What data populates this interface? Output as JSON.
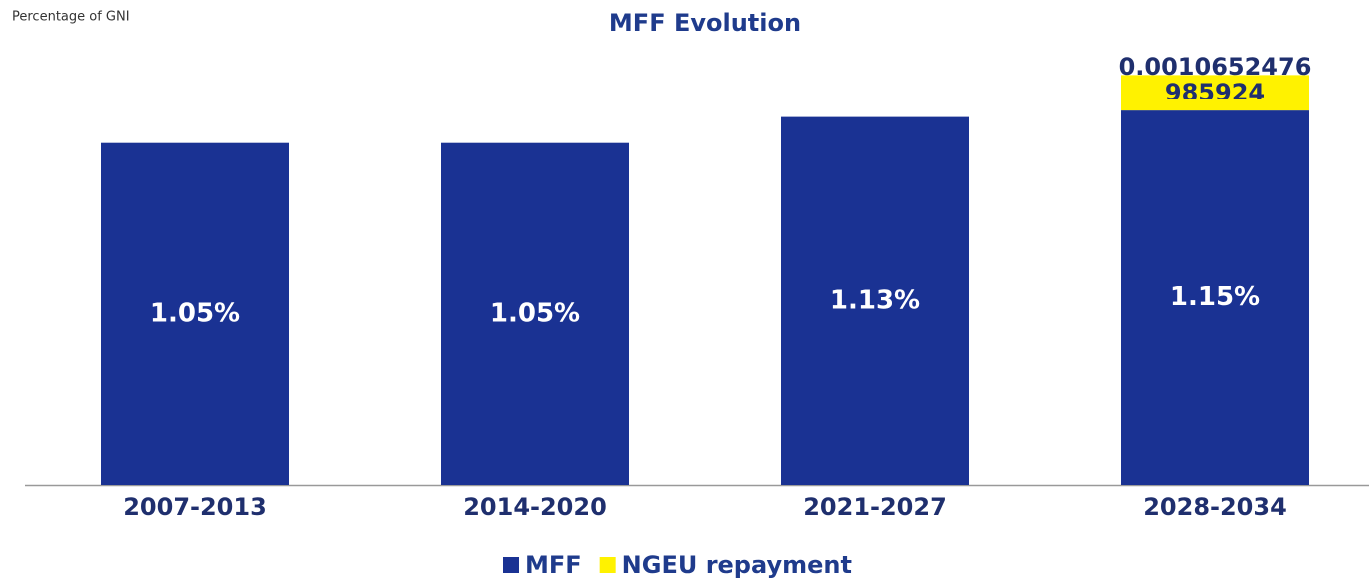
{
  "chart_data": {
    "type": "stacked_bar",
    "title": "MFF Evolution",
    "subtitle": "Percentage of GNI",
    "categories": [
      "2007-2013",
      "2014-2020",
      "2021-2027",
      "2028-2034"
    ],
    "series": [
      {
        "name": "MFF",
        "color": "#1a3293",
        "values": [
          1.05,
          1.05,
          1.13,
          1.15
        ],
        "value_labels": [
          "1.05%",
          "1.05%",
          "1.13%",
          "1.15%"
        ]
      },
      {
        "name": "NGEU repayment",
        "color": "#fff200",
        "values": [
          null,
          null,
          null,
          0.10652476985924
        ],
        "value_labels": [
          null,
          null,
          null,
          "0.0010652476985924"
        ]
      }
    ],
    "legend": "bottom"
  }
}
